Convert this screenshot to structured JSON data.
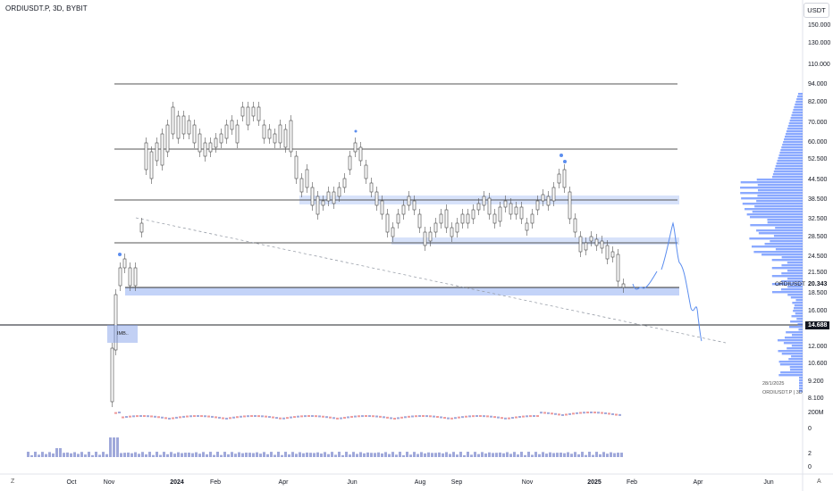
{
  "header": {
    "title": "ORDIUSDT.P, 3D, BYBIT",
    "currency_button": "USDT"
  },
  "y_axis": [
    "150.000",
    "130.000",
    "110.000",
    "94.000",
    "82.000",
    "70.000",
    "60.000",
    "52.500",
    "44.500",
    "38.500",
    "32.500",
    "28.500",
    "24.500",
    "21.500",
    "18.500",
    "16.000",
    "14.000",
    "12.000",
    "10.600",
    "9.200",
    "8.100"
  ],
  "volume_axis": [
    "200M",
    "0"
  ],
  "bottom_right_axis": [
    "2",
    "0"
  ],
  "x_axis": [
    {
      "label": "Oct",
      "bold": false
    },
    {
      "label": "Nov",
      "bold": false
    },
    {
      "label": "2024",
      "bold": true
    },
    {
      "label": "Feb",
      "bold": false
    },
    {
      "label": "Apr",
      "bold": false
    },
    {
      "label": "Jun",
      "bold": false
    },
    {
      "label": "Aug",
      "bold": false
    },
    {
      "label": "Sep",
      "bold": false
    },
    {
      "label": "Nov",
      "bold": false
    },
    {
      "label": "2025",
      "bold": true
    },
    {
      "label": "Feb",
      "bold": false
    },
    {
      "label": "Apr",
      "bold": false
    },
    {
      "label": "Jun",
      "bold": false
    }
  ],
  "symbol_tag": {
    "label": "ORDIUSDT.P",
    "price": "20.343"
  },
  "level_tag": {
    "price": "14.688"
  },
  "imbalance_label": "IMB..",
  "info": {
    "date": "28/1/2025",
    "symbol": "ORDIUSDT.P | 3D"
  },
  "bottom_icons": {
    "left": "Z",
    "right": "A"
  },
  "colors": {
    "up": "#26a69a",
    "down": "#ef5350",
    "zone": "#7b9ef0",
    "volume_profile": "#2962ff",
    "price_tag_bg": "#131722",
    "level_tag_bg": "#131722"
  }
}
